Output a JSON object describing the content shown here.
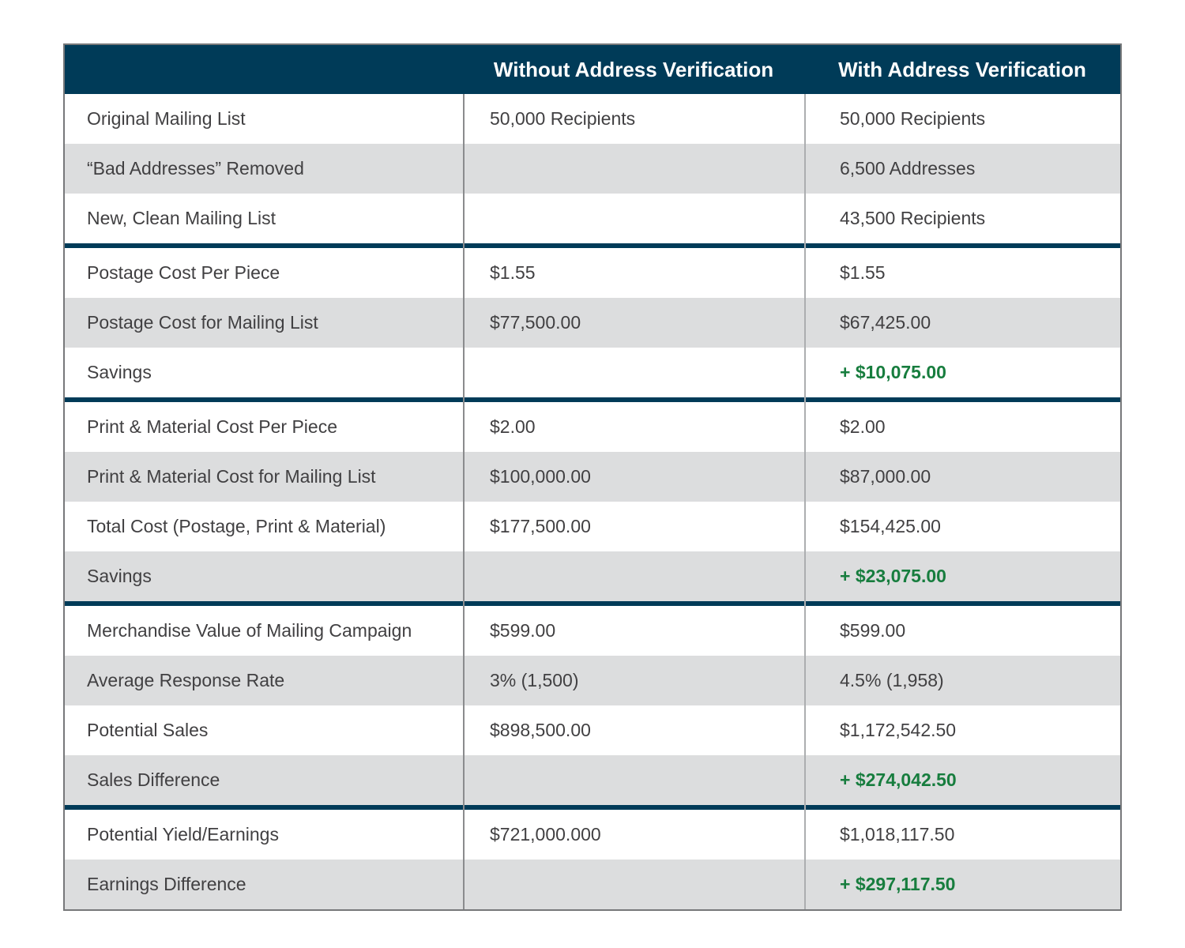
{
  "colors": {
    "navy": "#003B58",
    "green": "#177D3E",
    "row_alt_bg": "#DCDDDE",
    "row_bg": "#FFFFFF",
    "text": "#414042",
    "header_text": "#FFFFFF",
    "divider1": "#8A8B8D",
    "divider2": "#ACAEB0",
    "outer_border": "#77787A"
  },
  "chart_data": {
    "type": "table",
    "title": "",
    "columns": [
      "",
      "Without Address Verification",
      "With Address Verification"
    ],
    "sections": [
      {
        "rows": [
          {
            "label": "Original Mailing List",
            "without": "50,000 Recipients",
            "with": "50,000 Recipients",
            "highlight": false
          },
          {
            "label": "“Bad Addresses” Removed",
            "without": "",
            "with": "6,500 Addresses",
            "highlight": false
          },
          {
            "label": "New, Clean Mailing List",
            "without": "",
            "with": "43,500 Recipients",
            "highlight": false
          }
        ]
      },
      {
        "rows": [
          {
            "label": "Postage Cost Per Piece",
            "without": "$1.55",
            "with": "$1.55",
            "highlight": false
          },
          {
            "label": "Postage Cost for Mailing List",
            "without": "$77,500.00",
            "with": "$67,425.00",
            "highlight": false
          },
          {
            "label": "Savings",
            "without": "",
            "with": "+ $10,075.00",
            "highlight": true
          }
        ]
      },
      {
        "rows": [
          {
            "label": "Print & Material Cost Per Piece",
            "without": "$2.00",
            "with": "$2.00",
            "highlight": false
          },
          {
            "label": "Print & Material Cost for Mailing List",
            "without": "$100,000.00",
            "with": "$87,000.00",
            "highlight": false
          },
          {
            "label": "Total Cost (Postage, Print & Material)",
            "without": "$177,500.00",
            "with": "$154,425.00",
            "highlight": false
          },
          {
            "label": "Savings",
            "without": "",
            "with": "+ $23,075.00",
            "highlight": true
          }
        ]
      },
      {
        "rows": [
          {
            "label": "Merchandise Value of Mailing Campaign",
            "without": "$599.00",
            "with": "$599.00",
            "highlight": false
          },
          {
            "label": "Average Response Rate",
            "without": "3% (1,500)",
            "with": "4.5% (1,958)",
            "highlight": false
          },
          {
            "label": "Potential Sales",
            "without": "$898,500.00",
            "with": "$1,172,542.50",
            "highlight": false
          },
          {
            "label": "Sales Difference",
            "without": "",
            "with": "+ $274,042.50",
            "highlight": true
          }
        ]
      },
      {
        "rows": [
          {
            "label": "Potential Yield/Earnings",
            "without": "$721,000.000",
            "with": "$1,018,117.50",
            "highlight": false
          },
          {
            "label": "Earnings Difference",
            "without": "",
            "with": "+ $297,117.50",
            "highlight": true
          }
        ]
      }
    ]
  }
}
